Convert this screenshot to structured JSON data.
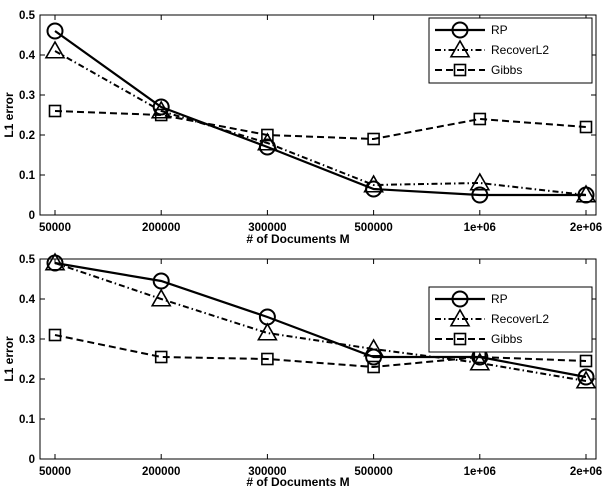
{
  "chart_data": [
    {
      "type": "line",
      "xlabel": "# of Documents M",
      "ylabel": "L1 error",
      "categories": [
        "50000",
        "200000",
        "300000",
        "500000",
        "1e+06",
        "2e+06"
      ],
      "ylim": [
        0,
        0.5
      ],
      "yticks": [
        "0",
        "0.1",
        "0.2",
        "0.3",
        "0.4",
        "0.5"
      ],
      "legend_position": "top-right",
      "grid": false,
      "series": [
        {
          "name": "RP",
          "marker": "circle",
          "dash": "solid",
          "values": [
            0.46,
            0.27,
            0.17,
            0.065,
            0.05,
            0.05
          ]
        },
        {
          "name": "RecoverL2",
          "marker": "triangle",
          "dash": "dashdot",
          "values": [
            0.41,
            0.26,
            0.18,
            0.075,
            0.08,
            0.05
          ]
        },
        {
          "name": "Gibbs",
          "marker": "square",
          "dash": "dashed",
          "values": [
            0.26,
            0.25,
            0.2,
            0.19,
            0.24,
            0.22
          ]
        }
      ]
    },
    {
      "type": "line",
      "xlabel": "# of Documents M",
      "ylabel": "L1 error",
      "categories": [
        "50000",
        "200000",
        "300000",
        "500000",
        "1e+06",
        "2e+06"
      ],
      "ylim": [
        0,
        0.5
      ],
      "yticks": [
        "0",
        "0.1",
        "0.2",
        "0.3",
        "0.4",
        "0.5"
      ],
      "legend_position": "top-right",
      "grid": false,
      "series": [
        {
          "name": "RP",
          "marker": "circle",
          "dash": "solid",
          "values": [
            0.49,
            0.445,
            0.355,
            0.255,
            0.255,
            0.205
          ]
        },
        {
          "name": "RecoverL2",
          "marker": "triangle",
          "dash": "dashdot",
          "values": [
            0.49,
            0.4,
            0.315,
            0.275,
            0.24,
            0.195
          ]
        },
        {
          "name": "Gibbs",
          "marker": "square",
          "dash": "dashed",
          "values": [
            0.31,
            0.255,
            0.25,
            0.23,
            0.255,
            0.245
          ]
        }
      ]
    }
  ]
}
